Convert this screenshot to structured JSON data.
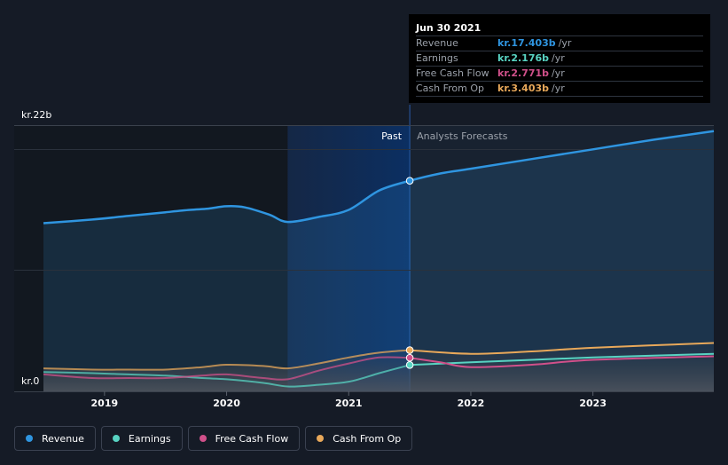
{
  "chart_data": {
    "type": "line",
    "title": "",
    "y_axis_labels": {
      "top": "kr.22b",
      "bottom": "kr.0"
    },
    "ylim": [
      0,
      22
    ],
    "xlim": [
      2018.5,
      2023.99
    ],
    "x_ticks": [
      2019,
      2020,
      2021,
      2022,
      2023
    ],
    "x_tick_labels": [
      "2019",
      "2020",
      "2021",
      "2022",
      "2023"
    ],
    "region_labels": {
      "past": "Past",
      "forecast": "Analysts Forecasts"
    },
    "divider_x": 2021.5,
    "highlight_start_x": 2020.5,
    "series": [
      {
        "name": "Revenue",
        "color": "#2f95e0",
        "points": [
          [
            2018.5,
            13.9
          ],
          [
            2018.9,
            14.2
          ],
          [
            2019.2,
            14.5
          ],
          [
            2019.5,
            14.8
          ],
          [
            2019.7,
            15.0
          ],
          [
            2019.85,
            15.1
          ],
          [
            2020.0,
            15.3
          ],
          [
            2020.15,
            15.2
          ],
          [
            2020.35,
            14.6
          ],
          [
            2020.5,
            14.0
          ],
          [
            2020.75,
            14.4
          ],
          [
            2021.0,
            15.0
          ],
          [
            2021.25,
            16.6
          ],
          [
            2021.5,
            17.4
          ],
          [
            2021.75,
            18.0
          ],
          [
            2022.0,
            18.4
          ],
          [
            2022.5,
            19.2
          ],
          [
            2023.0,
            20.0
          ],
          [
            2023.5,
            20.8
          ],
          [
            2023.99,
            21.5
          ]
        ]
      },
      {
        "name": "Earnings",
        "color": "#58d3c2",
        "points": [
          [
            2018.5,
            1.6
          ],
          [
            2018.9,
            1.5
          ],
          [
            2019.2,
            1.4
          ],
          [
            2019.5,
            1.3
          ],
          [
            2019.8,
            1.1
          ],
          [
            2020.0,
            1.0
          ],
          [
            2020.3,
            0.7
          ],
          [
            2020.5,
            0.4
          ],
          [
            2020.7,
            0.5
          ],
          [
            2021.0,
            0.8
          ],
          [
            2021.25,
            1.5
          ],
          [
            2021.5,
            2.18
          ],
          [
            2022.0,
            2.4
          ],
          [
            2022.5,
            2.6
          ],
          [
            2023.0,
            2.8
          ],
          [
            2023.99,
            3.1
          ]
        ]
      },
      {
        "name": "Free Cash Flow",
        "color": "#d0508a",
        "points": [
          [
            2018.5,
            1.4
          ],
          [
            2018.9,
            1.1
          ],
          [
            2019.2,
            1.1
          ],
          [
            2019.5,
            1.1
          ],
          [
            2019.8,
            1.3
          ],
          [
            2020.0,
            1.4
          ],
          [
            2020.3,
            1.1
          ],
          [
            2020.5,
            1.0
          ],
          [
            2020.75,
            1.7
          ],
          [
            2021.0,
            2.3
          ],
          [
            2021.25,
            2.8
          ],
          [
            2021.5,
            2.77
          ],
          [
            2021.75,
            2.4
          ],
          [
            2022.0,
            2.0
          ],
          [
            2022.5,
            2.2
          ],
          [
            2023.0,
            2.6
          ],
          [
            2023.99,
            2.9
          ]
        ]
      },
      {
        "name": "Cash From Op",
        "color": "#e8a85a",
        "points": [
          [
            2018.5,
            1.9
          ],
          [
            2018.9,
            1.8
          ],
          [
            2019.2,
            1.8
          ],
          [
            2019.5,
            1.8
          ],
          [
            2019.8,
            2.0
          ],
          [
            2020.0,
            2.2
          ],
          [
            2020.3,
            2.1
          ],
          [
            2020.5,
            1.9
          ],
          [
            2020.75,
            2.3
          ],
          [
            2021.0,
            2.8
          ],
          [
            2021.25,
            3.2
          ],
          [
            2021.5,
            3.4
          ],
          [
            2022.0,
            3.1
          ],
          [
            2022.5,
            3.3
          ],
          [
            2023.0,
            3.6
          ],
          [
            2023.99,
            4.0
          ]
        ]
      }
    ],
    "tooltip": {
      "date": "Jun 30 2021",
      "x": 2021.5,
      "rows": [
        {
          "label": "Revenue",
          "value": "kr.17.403b",
          "unit": "/yr",
          "color": "#2f95e0",
          "y": 17.403
        },
        {
          "label": "Earnings",
          "value": "kr.2.176b",
          "unit": "/yr",
          "color": "#58d3c2",
          "y": 2.176
        },
        {
          "label": "Free Cash Flow",
          "value": "kr.2.771b",
          "unit": "/yr",
          "color": "#d0508a",
          "y": 2.771
        },
        {
          "label": "Cash From Op",
          "value": "kr.3.403b",
          "unit": "/yr",
          "color": "#e8a85a",
          "y": 3.403
        }
      ]
    }
  },
  "legend": [
    {
      "label": "Revenue",
      "color": "#2f95e0"
    },
    {
      "label": "Earnings",
      "color": "#58d3c2"
    },
    {
      "label": "Free Cash Flow",
      "color": "#d0508a"
    },
    {
      "label": "Cash From Op",
      "color": "#e8a85a"
    }
  ]
}
